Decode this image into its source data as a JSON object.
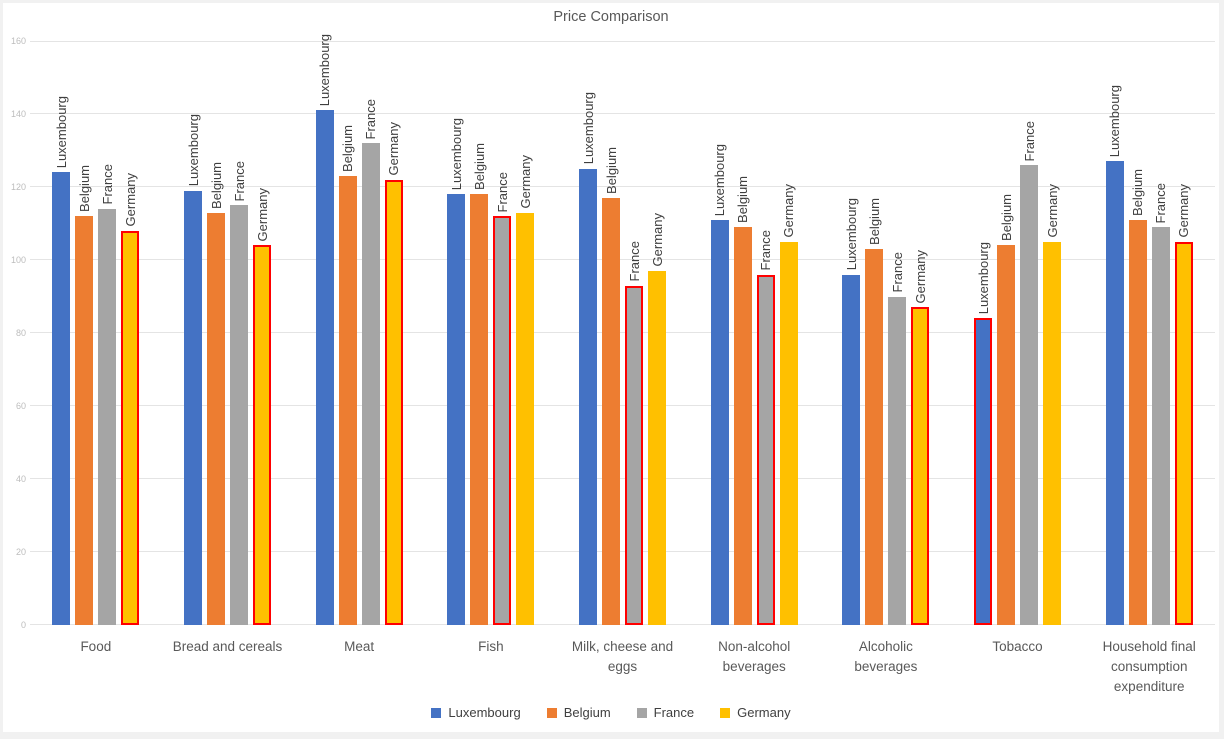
{
  "chart_data": {
    "type": "bar",
    "title": "Price Comparison",
    "series": [
      "Luxembourg",
      "Belgium",
      "France",
      "Germany"
    ],
    "series_colors": [
      "#4472C4",
      "#ED7D31",
      "#A5A5A5",
      "#FFC000"
    ],
    "outline_color": "#FF0000",
    "ylim": [
      0,
      160
    ],
    "yticks": [
      0,
      20,
      40,
      60,
      80,
      100,
      120,
      140,
      160
    ],
    "grid": true,
    "legend_position": "bottom",
    "groups": [
      {
        "category": "Food",
        "values": [
          124,
          112,
          114,
          108
        ],
        "outlined_series": "Germany"
      },
      {
        "category": "Bread and cereals",
        "values": [
          119,
          113,
          115,
          104
        ],
        "outlined_series": "Germany"
      },
      {
        "category": "Meat",
        "values": [
          141,
          123,
          132,
          122
        ],
        "outlined_series": "Germany"
      },
      {
        "category": "Fish",
        "values": [
          118,
          118,
          112,
          113
        ],
        "outlined_series": "France"
      },
      {
        "category": "Milk, cheese and eggs",
        "values": [
          125,
          117,
          93,
          97
        ],
        "outlined_series": "France"
      },
      {
        "category": "Non-alcohol beverages",
        "values": [
          111,
          109,
          96,
          105
        ],
        "outlined_series": "France"
      },
      {
        "category": "Alcoholic beverages",
        "values": [
          96,
          103,
          90,
          87
        ],
        "outlined_series": "Germany"
      },
      {
        "category": "Tobacco",
        "values": [
          84,
          104,
          126,
          105
        ],
        "outlined_series": "Luxembourg"
      },
      {
        "category": "Household final consumption expenditure",
        "values": [
          127,
          111,
          109,
          105
        ],
        "outlined_series": "Germany"
      }
    ]
  }
}
